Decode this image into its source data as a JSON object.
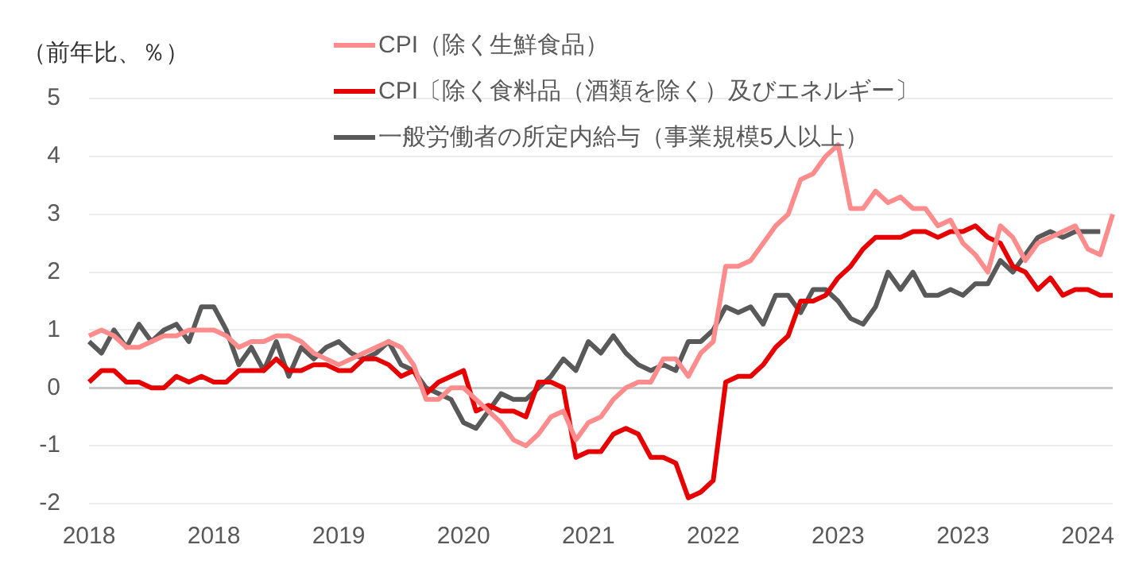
{
  "chart_data": {
    "type": "line",
    "ylabel": "（前年比、％）",
    "categories": [
      "2018",
      null,
      null,
      null,
      null,
      null,
      null,
      null,
      null,
      null,
      "2018",
      null,
      null,
      null,
      null,
      null,
      null,
      null,
      null,
      null,
      "2019",
      null,
      null,
      null,
      null,
      null,
      null,
      null,
      null,
      null,
      "2020",
      null,
      null,
      null,
      null,
      null,
      null,
      null,
      null,
      null,
      "2021",
      null,
      null,
      null,
      null,
      null,
      null,
      null,
      null,
      null,
      "2022",
      null,
      null,
      null,
      null,
      null,
      null,
      null,
      null,
      null,
      "2023",
      null,
      null,
      null,
      null,
      null,
      null,
      null,
      null,
      null,
      "2023",
      null,
      null,
      null,
      null,
      null,
      null,
      null,
      null,
      null,
      "2024",
      null,
      null
    ],
    "series": [
      {
        "name": "CPI（除く生鮮食品）",
        "color": "#ff8c8c",
        "values": [
          0.9,
          1.0,
          0.9,
          0.7,
          0.7,
          0.8,
          0.9,
          0.9,
          1.0,
          1.0,
          1.0,
          0.9,
          0.7,
          0.8,
          0.8,
          0.9,
          0.9,
          0.8,
          0.6,
          0.5,
          0.4,
          0.5,
          0.6,
          0.7,
          0.8,
          0.7,
          0.4,
          -0.2,
          -0.2,
          0.0,
          0.0,
          -0.2,
          -0.4,
          -0.6,
          -0.9,
          -1.0,
          -0.8,
          -0.5,
          -0.4,
          -0.9,
          -0.6,
          -0.5,
          -0.2,
          0.0,
          0.1,
          0.1,
          0.5,
          0.5,
          0.2,
          0.6,
          0.8,
          2.1,
          2.1,
          2.2,
          2.5,
          2.8,
          3.0,
          3.6,
          3.7,
          4.0,
          4.2,
          3.1,
          3.1,
          3.4,
          3.2,
          3.3,
          3.1,
          3.1,
          2.8,
          2.9,
          2.5,
          2.3,
          2.0,
          2.8,
          2.6,
          2.2,
          2.5,
          2.6,
          2.7,
          2.8,
          2.4,
          2.3,
          3.0
        ]
      },
      {
        "name": "CPI〔除く食料品（酒類を除く）及びエネルギー〕",
        "color": "#e60000",
        "values": [
          0.1,
          0.3,
          0.3,
          0.1,
          0.1,
          0.0,
          0.0,
          0.2,
          0.1,
          0.2,
          0.1,
          0.1,
          0.3,
          0.3,
          0.3,
          0.5,
          0.3,
          0.3,
          0.4,
          0.4,
          0.3,
          0.3,
          0.5,
          0.5,
          0.4,
          0.2,
          0.3,
          -0.1,
          0.1,
          0.2,
          0.3,
          -0.4,
          -0.3,
          -0.4,
          -0.4,
          -0.5,
          0.1,
          0.1,
          0.0,
          -1.2,
          -1.1,
          -1.1,
          -0.8,
          -0.7,
          -0.8,
          -1.2,
          -1.2,
          -1.3,
          -1.9,
          -1.8,
          -1.6,
          0.1,
          0.2,
          0.2,
          0.4,
          0.7,
          0.9,
          1.5,
          1.5,
          1.6,
          1.9,
          2.1,
          2.4,
          2.6,
          2.6,
          2.6,
          2.7,
          2.7,
          2.6,
          2.7,
          2.7,
          2.8,
          2.6,
          2.5,
          2.1,
          2.0,
          1.7,
          1.9,
          1.6,
          1.7,
          1.7,
          1.6,
          1.6
        ]
      },
      {
        "name": "一般労働者の所定内給与（事業規模5人以上）",
        "color": "#595959",
        "values": [
          0.8,
          0.6,
          1.0,
          0.7,
          1.1,
          0.8,
          1.0,
          1.1,
          0.8,
          1.4,
          1.4,
          1.0,
          0.4,
          0.7,
          0.3,
          0.8,
          0.2,
          0.7,
          0.5,
          0.7,
          0.8,
          0.6,
          0.5,
          0.6,
          0.8,
          0.4,
          0.3,
          0.0,
          -0.1,
          -0.2,
          -0.6,
          -0.7,
          -0.4,
          -0.1,
          -0.2,
          -0.2,
          0.0,
          0.2,
          0.5,
          0.3,
          0.8,
          0.6,
          0.9,
          0.6,
          0.4,
          0.3,
          0.4,
          0.3,
          0.8,
          0.8,
          1.0,
          1.4,
          1.3,
          1.4,
          1.1,
          1.6,
          1.6,
          1.3,
          1.7,
          1.7,
          1.5,
          1.2,
          1.1,
          1.4,
          2.0,
          1.7,
          2.0,
          1.6,
          1.6,
          1.7,
          1.6,
          1.8,
          1.8,
          2.2,
          2.0,
          2.3,
          2.6,
          2.7,
          2.6,
          2.7,
          2.7,
          2.7,
          null
        ]
      }
    ],
    "ylim": [
      -2,
      5
    ],
    "yticks": [
      -2,
      -1,
      0,
      1,
      2,
      3,
      4,
      5
    ],
    "grid": "y",
    "legend": "top",
    "line_style": "solid",
    "marker": "none"
  }
}
